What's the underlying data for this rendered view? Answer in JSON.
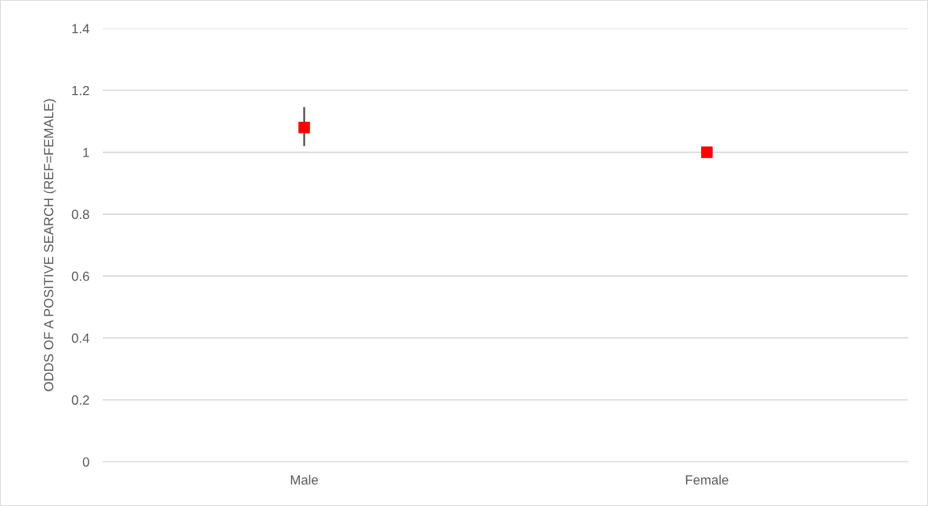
{
  "chart_data": {
    "type": "scatter",
    "ylabel": "ODDS OF A POSITIVE SEARCH (REF=FEMALE)",
    "categories": [
      "Male",
      "Female"
    ],
    "series": [
      {
        "color": "#ff0000",
        "values": [
          1.08,
          1.0
        ],
        "errors": [
          [
            1.02,
            1.146
          ],
          null
        ]
      }
    ],
    "ylim": [
      0,
      1.4
    ],
    "yticks": [
      0,
      0.2,
      0.4,
      0.6,
      0.8,
      1,
      1.2,
      1.4
    ],
    "grid": "y",
    "marker": "square"
  }
}
